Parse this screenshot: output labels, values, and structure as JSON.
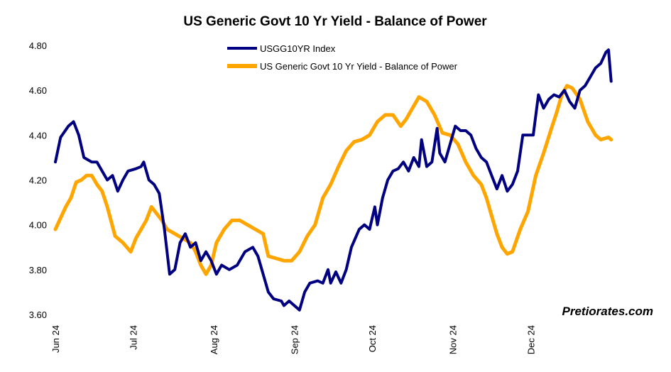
{
  "chart_data": {
    "type": "line",
    "title": "US Generic Govt 10 Yr Yield - Balance of Power",
    "xlabel": "",
    "ylabel": "",
    "ylim": [
      3.6,
      4.8
    ],
    "yticks": [
      "3.60",
      "3.80",
      "4.00",
      "4.20",
      "4.40",
      "4.60",
      "4.80"
    ],
    "x_ticks": [
      {
        "label": "Jun 24",
        "x": "2024-06-01"
      },
      {
        "label": "Jul 24",
        "x": "2024-07-01"
      },
      {
        "label": "Aug 24",
        "x": "2024-08-01"
      },
      {
        "label": "Sep 24",
        "x": "2024-09-01"
      },
      {
        "label": "Oct 24",
        "x": "2024-10-01"
      },
      {
        "label": "Nov 24",
        "x": "2024-11-01"
      },
      {
        "label": "Dec 24",
        "x": "2024-12-01"
      }
    ],
    "xlim": [
      "2024-06-01",
      "2025-01-03"
    ],
    "grid": false,
    "legend_position": "top-center",
    "series": [
      {
        "name": "USGG10YR Index",
        "color": "#000080",
        "points": [
          [
            "2024-06-01",
            4.28
          ],
          [
            "2024-06-03",
            4.39
          ],
          [
            "2024-06-06",
            4.44
          ],
          [
            "2024-06-08",
            4.46
          ],
          [
            "2024-06-10",
            4.4
          ],
          [
            "2024-06-12",
            4.3
          ],
          [
            "2024-06-15",
            4.28
          ],
          [
            "2024-06-17",
            4.28
          ],
          [
            "2024-06-19",
            4.24
          ],
          [
            "2024-06-21",
            4.2
          ],
          [
            "2024-06-23",
            4.22
          ],
          [
            "2024-06-25",
            4.15
          ],
          [
            "2024-06-27",
            4.2
          ],
          [
            "2024-06-29",
            4.24
          ],
          [
            "2024-07-02",
            4.25
          ],
          [
            "2024-07-04",
            4.26
          ],
          [
            "2024-07-05",
            4.28
          ],
          [
            "2024-07-07",
            4.2
          ],
          [
            "2024-07-09",
            4.18
          ],
          [
            "2024-07-11",
            4.14
          ],
          [
            "2024-07-13",
            3.98
          ],
          [
            "2024-07-15",
            3.78
          ],
          [
            "2024-07-17",
            3.8
          ],
          [
            "2024-07-19",
            3.92
          ],
          [
            "2024-07-21",
            3.96
          ],
          [
            "2024-07-23",
            3.9
          ],
          [
            "2024-07-25",
            3.92
          ],
          [
            "2024-07-27",
            3.84
          ],
          [
            "2024-07-29",
            3.88
          ],
          [
            "2024-07-31",
            3.84
          ],
          [
            "2024-08-02",
            3.78
          ],
          [
            "2024-08-04",
            3.82
          ],
          [
            "2024-08-07",
            3.8
          ],
          [
            "2024-08-10",
            3.82
          ],
          [
            "2024-08-13",
            3.88
          ],
          [
            "2024-08-16",
            3.9
          ],
          [
            "2024-08-18",
            3.86
          ],
          [
            "2024-08-20",
            3.78
          ],
          [
            "2024-08-22",
            3.7
          ],
          [
            "2024-08-24",
            3.67
          ],
          [
            "2024-08-27",
            3.66
          ],
          [
            "2024-08-28",
            3.64
          ],
          [
            "2024-08-30",
            3.66
          ],
          [
            "2024-09-01",
            3.64
          ],
          [
            "2024-09-03",
            3.62
          ],
          [
            "2024-09-05",
            3.7
          ],
          [
            "2024-09-07",
            3.74
          ],
          [
            "2024-09-10",
            3.75
          ],
          [
            "2024-09-12",
            3.74
          ],
          [
            "2024-09-14",
            3.8
          ],
          [
            "2024-09-15",
            3.74
          ],
          [
            "2024-09-17",
            3.79
          ],
          [
            "2024-09-19",
            3.74
          ],
          [
            "2024-09-21",
            3.8
          ],
          [
            "2024-09-23",
            3.9
          ],
          [
            "2024-09-26",
            3.98
          ],
          [
            "2024-09-28",
            4.0
          ],
          [
            "2024-09-30",
            3.98
          ],
          [
            "2024-10-02",
            4.08
          ],
          [
            "2024-10-03",
            4.0
          ],
          [
            "2024-10-05",
            4.12
          ],
          [
            "2024-10-07",
            4.2
          ],
          [
            "2024-10-09",
            4.24
          ],
          [
            "2024-10-11",
            4.25
          ],
          [
            "2024-10-13",
            4.28
          ],
          [
            "2024-10-15",
            4.24
          ],
          [
            "2024-10-17",
            4.3
          ],
          [
            "2024-10-19",
            4.26
          ],
          [
            "2024-10-20",
            4.38
          ],
          [
            "2024-10-22",
            4.26
          ],
          [
            "2024-10-24",
            4.28
          ],
          [
            "2024-10-26",
            4.43
          ],
          [
            "2024-10-27",
            4.32
          ],
          [
            "2024-10-29",
            4.28
          ],
          [
            "2024-10-31",
            4.36
          ],
          [
            "2024-11-02",
            4.44
          ],
          [
            "2024-11-04",
            4.42
          ],
          [
            "2024-11-06",
            4.42
          ],
          [
            "2024-11-08",
            4.4
          ],
          [
            "2024-11-10",
            4.34
          ],
          [
            "2024-11-12",
            4.3
          ],
          [
            "2024-11-14",
            4.28
          ],
          [
            "2024-11-16",
            4.22
          ],
          [
            "2024-11-18",
            4.16
          ],
          [
            "2024-11-20",
            4.22
          ],
          [
            "2024-11-22",
            4.15
          ],
          [
            "2024-11-24",
            4.18
          ],
          [
            "2024-11-26",
            4.24
          ],
          [
            "2024-11-28",
            4.4
          ],
          [
            "2024-11-30",
            4.4
          ],
          [
            "2024-12-02",
            4.4
          ],
          [
            "2024-12-04",
            4.58
          ],
          [
            "2024-12-06",
            4.52
          ],
          [
            "2024-12-08",
            4.56
          ],
          [
            "2024-12-10",
            4.58
          ],
          [
            "2024-12-12",
            4.57
          ],
          [
            "2024-12-14",
            4.6
          ],
          [
            "2024-12-16",
            4.55
          ],
          [
            "2024-12-18",
            4.52
          ],
          [
            "2024-12-20",
            4.6
          ],
          [
            "2024-12-22",
            4.62
          ],
          [
            "2024-12-24",
            4.66
          ],
          [
            "2024-12-26",
            4.7
          ],
          [
            "2024-12-28",
            4.72
          ],
          [
            "2024-12-30",
            4.77
          ],
          [
            "2024-12-31",
            4.78
          ],
          [
            "2025-01-01",
            4.64
          ]
        ]
      },
      {
        "name": "US Generic Govt 10 Yr Yield - Balance of Power",
        "color": "#FFA500",
        "points": [
          [
            "2024-06-01",
            3.98
          ],
          [
            "2024-06-03",
            4.03
          ],
          [
            "2024-06-05",
            4.08
          ],
          [
            "2024-06-07",
            4.12
          ],
          [
            "2024-06-09",
            4.19
          ],
          [
            "2024-06-11",
            4.2
          ],
          [
            "2024-06-13",
            4.22
          ],
          [
            "2024-06-15",
            4.22
          ],
          [
            "2024-06-17",
            4.18
          ],
          [
            "2024-06-19",
            4.15
          ],
          [
            "2024-06-21",
            4.08
          ],
          [
            "2024-06-24",
            3.95
          ],
          [
            "2024-06-27",
            3.92
          ],
          [
            "2024-06-30",
            3.88
          ],
          [
            "2024-07-02",
            3.94
          ],
          [
            "2024-07-04",
            3.98
          ],
          [
            "2024-07-06",
            4.02
          ],
          [
            "2024-07-08",
            4.08
          ],
          [
            "2024-07-10",
            4.05
          ],
          [
            "2024-07-12",
            4.02
          ],
          [
            "2024-07-14",
            3.98
          ],
          [
            "2024-07-17",
            3.96
          ],
          [
            "2024-07-20",
            3.94
          ],
          [
            "2024-07-23",
            3.92
          ],
          [
            "2024-07-25",
            3.88
          ],
          [
            "2024-07-27",
            3.82
          ],
          [
            "2024-07-29",
            3.78
          ],
          [
            "2024-07-31",
            3.82
          ],
          [
            "2024-08-02",
            3.92
          ],
          [
            "2024-08-05",
            3.98
          ],
          [
            "2024-08-08",
            4.02
          ],
          [
            "2024-08-11",
            4.02
          ],
          [
            "2024-08-14",
            4.0
          ],
          [
            "2024-08-17",
            3.98
          ],
          [
            "2024-08-20",
            3.96
          ],
          [
            "2024-08-22",
            3.86
          ],
          [
            "2024-08-25",
            3.85
          ],
          [
            "2024-08-28",
            3.84
          ],
          [
            "2024-08-31",
            3.84
          ],
          [
            "2024-09-03",
            3.88
          ],
          [
            "2024-09-06",
            3.95
          ],
          [
            "2024-09-09",
            4.0
          ],
          [
            "2024-09-12",
            4.12
          ],
          [
            "2024-09-15",
            4.18
          ],
          [
            "2024-09-18",
            4.26
          ],
          [
            "2024-09-21",
            4.33
          ],
          [
            "2024-09-24",
            4.37
          ],
          [
            "2024-09-27",
            4.38
          ],
          [
            "2024-09-30",
            4.4
          ],
          [
            "2024-10-03",
            4.46
          ],
          [
            "2024-10-06",
            4.49
          ],
          [
            "2024-10-09",
            4.49
          ],
          [
            "2024-10-12",
            4.44
          ],
          [
            "2024-10-14",
            4.47
          ],
          [
            "2024-10-17",
            4.53
          ],
          [
            "2024-10-19",
            4.57
          ],
          [
            "2024-10-22",
            4.55
          ],
          [
            "2024-10-25",
            4.49
          ],
          [
            "2024-10-28",
            4.41
          ],
          [
            "2024-10-31",
            4.4
          ],
          [
            "2024-11-03",
            4.36
          ],
          [
            "2024-11-06",
            4.28
          ],
          [
            "2024-11-09",
            4.22
          ],
          [
            "2024-11-12",
            4.18
          ],
          [
            "2024-11-14",
            4.12
          ],
          [
            "2024-11-16",
            4.04
          ],
          [
            "2024-11-18",
            3.96
          ],
          [
            "2024-11-20",
            3.9
          ],
          [
            "2024-11-22",
            3.87
          ],
          [
            "2024-11-24",
            3.88
          ],
          [
            "2024-11-27",
            3.98
          ],
          [
            "2024-11-30",
            4.06
          ],
          [
            "2024-12-03",
            4.22
          ],
          [
            "2024-12-06",
            4.32
          ],
          [
            "2024-12-09",
            4.43
          ],
          [
            "2024-12-11",
            4.5
          ],
          [
            "2024-12-13",
            4.58
          ],
          [
            "2024-12-15",
            4.62
          ],
          [
            "2024-12-17",
            4.61
          ],
          [
            "2024-12-20",
            4.56
          ],
          [
            "2024-12-23",
            4.46
          ],
          [
            "2024-12-26",
            4.4
          ],
          [
            "2024-12-28",
            4.38
          ],
          [
            "2024-12-31",
            4.39
          ],
          [
            "2025-01-01",
            4.38
          ]
        ]
      }
    ]
  },
  "watermark": "Pretiorates.com"
}
